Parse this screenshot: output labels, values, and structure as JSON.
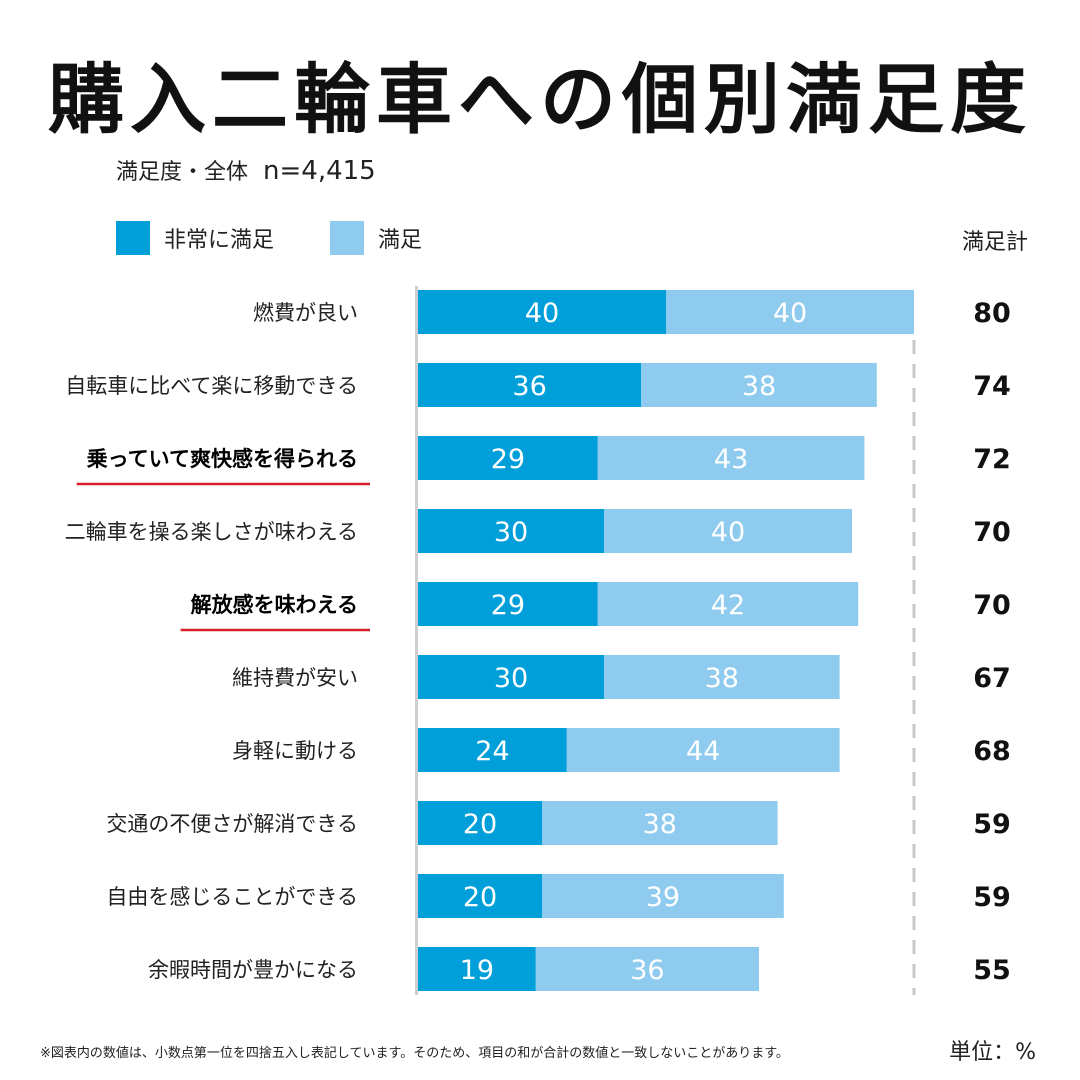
{
  "title": "購入二輪車への個別満足度",
  "subtitle": {
    "label": "満足度・全体",
    "n": "n=4,415"
  },
  "legend": [
    {
      "label": "非常に満足",
      "color": "#009fd9"
    },
    {
      "label": "満足",
      "color": "#8ecbef"
    }
  ],
  "total_header": "満足計",
  "footnote": "※図表内の数値は、小数点第一位を四捨五入し表記しています。そのため、項目の和が合計の数値と一致しないことがあります。",
  "unit_label": "単位：%",
  "highlight_color": "#d81e28",
  "chart_data": {
    "type": "bar",
    "orientation": "horizontal",
    "stacked": true,
    "categories": [
      "燃費が良い",
      "自転車に比べて楽に移動できる",
      "乗っていて爽快感を得られる",
      "二輪車を操る楽しさが味わえる",
      "解放感を味わえる",
      "維持費が安い",
      "身軽に動ける",
      "交通の不便さが解消できる",
      "自由を感じることができる",
      "余暇時間が豊かになる"
    ],
    "highlighted": [
      false,
      false,
      true,
      false,
      true,
      false,
      false,
      false,
      false,
      false
    ],
    "series": [
      {
        "name": "非常に満足",
        "color": "#009fd9",
        "values": [
          40,
          36,
          29,
          30,
          29,
          30,
          24,
          20,
          20,
          19
        ]
      },
      {
        "name": "満足",
        "color": "#8ecbef",
        "values": [
          40,
          38,
          43,
          40,
          42,
          38,
          44,
          38,
          39,
          36
        ]
      }
    ],
    "totals": [
      80,
      74,
      72,
      70,
      70,
      67,
      68,
      59,
      59,
      55
    ],
    "xlim": [
      0,
      80
    ],
    "unit": "%"
  }
}
